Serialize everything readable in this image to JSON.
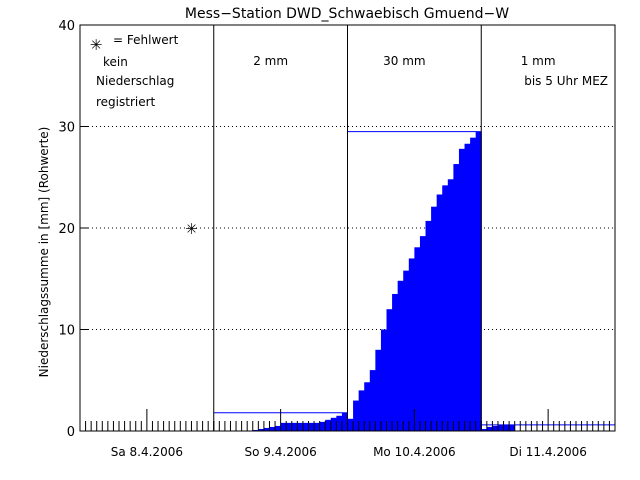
{
  "chart_data": {
    "type": "bar",
    "title": "Mess−Station DWD_Schwaebisch Gmuend−W",
    "xlabel": "",
    "ylabel": "Niederschlagssumme in [mm] (Rohwerte)",
    "ylim": [
      0,
      40
    ],
    "yticks": [
      0,
      10,
      20,
      30,
      40
    ],
    "grid": "horizontal dotted",
    "hours_per_day": 24,
    "days": [
      {
        "label": "Sa 8.4.2006",
        "total_text": "",
        "note": [
          "kein",
          "Niederschlag",
          "registriert"
        ],
        "hourly_cumulative": [
          0,
          0,
          0,
          0,
          0,
          0,
          0,
          0,
          0,
          0,
          0,
          0,
          0,
          0,
          0,
          0,
          0,
          0,
          0,
          0,
          0,
          0,
          0,
          0
        ]
      },
      {
        "label": "So 9.4.2006",
        "total_text": "2 mm",
        "total": 1.8,
        "hourly_cumulative": [
          0,
          0,
          0,
          0,
          0,
          0,
          0,
          0.1,
          0.2,
          0.3,
          0.4,
          0.5,
          0.8,
          0.8,
          0.8,
          0.8,
          0.8,
          0.8,
          0.8,
          0.9,
          1.1,
          1.3,
          1.5,
          1.8
        ]
      },
      {
        "label": "Mo 10.4.2006",
        "total_text": "30 mm",
        "total": 29.5,
        "hourly_cumulative": [
          1.2,
          3.0,
          4.0,
          4.8,
          6.0,
          8.0,
          10.0,
          12.0,
          13.5,
          14.8,
          15.8,
          17.0,
          18.1,
          19.2,
          20.7,
          22.1,
          23.3,
          24.2,
          24.8,
          26.3,
          27.8,
          28.3,
          28.9,
          29.5
        ]
      },
      {
        "label": "Di 11.4.2006",
        "total_text": "1 mm",
        "note": [
          "bis 5 Uhr MEZ"
        ],
        "total": 0.6,
        "hourly_cumulative": [
          0.2,
          0.4,
          0.5,
          0.6,
          0.6,
          0.6
        ]
      }
    ],
    "missing_values": [
      {
        "day_index": 0,
        "hour": 20,
        "value": 20
      }
    ],
    "legend": {
      "marker": "✳",
      "text": "= Fehlwert"
    },
    "colors": {
      "bars": "#0000ff",
      "total_line": "#0000ff",
      "axes": "#000000",
      "grid": "#000000"
    }
  }
}
